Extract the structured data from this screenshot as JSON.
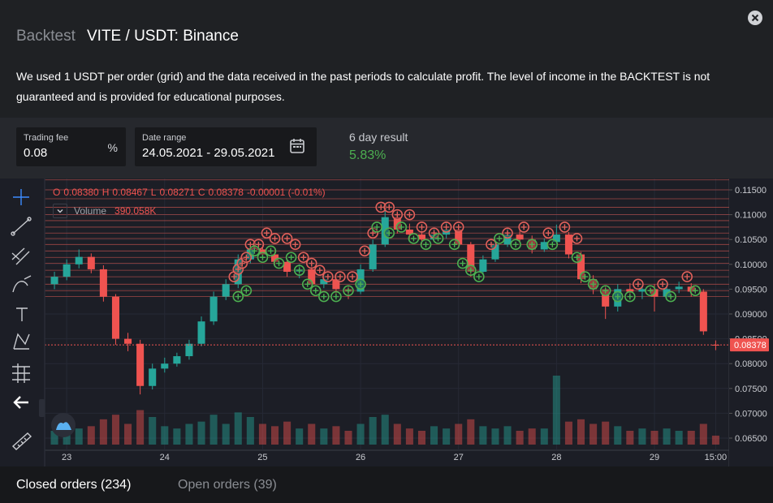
{
  "header": {
    "prefix": "Backtest",
    "title": "VITE / USDT: Binance"
  },
  "description": "We used 1 USDT per order (grid) and the data received in the past periods to calculate profit. The level of income in the BACKTEST is not guaranteed and is provided for educational purposes.",
  "fields": {
    "fee": {
      "label": "Trading fee",
      "value": "0.08",
      "unit": "%"
    },
    "range": {
      "label": "Date range",
      "value": "24.05.2021 - 29.05.2021"
    }
  },
  "result": {
    "label": "6 day result",
    "value": "5.83%"
  },
  "chart_data": {
    "type": "candlestick",
    "ohlc_legend": [
      {
        "label": "O",
        "value": "0.08380"
      },
      {
        "label": "H",
        "value": "0.08467"
      },
      {
        "label": "L",
        "value": "0.08271"
      },
      {
        "label": "C",
        "value": "0.08378"
      }
    ],
    "change": "-0.00001 (-0.01%)",
    "volume_name": "Volume",
    "volume_label": "390.058K",
    "up_color": "#26a69a",
    "down_color": "#ef5350",
    "x": [
      -3,
      0,
      3,
      6,
      9,
      12,
      15,
      18,
      21,
      24,
      27,
      30,
      33,
      36,
      39,
      42,
      45,
      48,
      51,
      54,
      57,
      60,
      63,
      66,
      69,
      72,
      75,
      78,
      81,
      84,
      87,
      90,
      93,
      96,
      99,
      102,
      105,
      108,
      111,
      114,
      117,
      120,
      123,
      126,
      129,
      132,
      135,
      138,
      141,
      144,
      147,
      150,
      153,
      156,
      159
    ],
    "open": [
      0.096,
      0.0975,
      0.1,
      0.1015,
      0.099,
      0.0935,
      0.085,
      0.084,
      0.0755,
      0.079,
      0.08,
      0.0815,
      0.084,
      0.0885,
      0.0935,
      0.096,
      0.101,
      0.103,
      0.102,
      0.1005,
      0.0985,
      0.099,
      0.096,
      0.097,
      0.095,
      0.0945,
      0.099,
      0.104,
      0.1095,
      0.107,
      0.106,
      0.105,
      0.106,
      0.107,
      0.104,
      0.0985,
      0.101,
      0.104,
      0.106,
      0.105,
      0.103,
      0.1045,
      0.106,
      0.102,
      0.097,
      0.095,
      0.0915,
      0.095,
      0.0945,
      0.095,
      0.0935,
      0.095,
      0.0955,
      0.0945,
      0.0838
    ],
    "high": [
      0.0985,
      0.101,
      0.103,
      0.1022,
      0.0998,
      0.094,
      0.0862,
      0.0848,
      0.08,
      0.0812,
      0.0822,
      0.0848,
      0.0895,
      0.0945,
      0.097,
      0.102,
      0.1045,
      0.104,
      0.103,
      0.1012,
      0.1,
      0.0998,
      0.0982,
      0.0978,
      0.0958,
      0.1,
      0.105,
      0.1115,
      0.1108,
      0.1082,
      0.1068,
      0.1072,
      0.1085,
      0.1078,
      0.1045,
      0.1018,
      0.1048,
      0.1072,
      0.1068,
      0.1058,
      0.1052,
      0.108,
      0.1065,
      0.1025,
      0.0978,
      0.0958,
      0.096,
      0.0962,
      0.0958,
      0.096,
      0.0962,
      0.0965,
      0.0962,
      0.095,
      0.08467
    ],
    "low": [
      0.095,
      0.0968,
      0.0992,
      0.0982,
      0.0925,
      0.0838,
      0.0825,
      0.0738,
      0.0748,
      0.0782,
      0.0794,
      0.0808,
      0.0835,
      0.0878,
      0.0928,
      0.0952,
      0.1002,
      0.101,
      0.0995,
      0.0975,
      0.0972,
      0.095,
      0.0952,
      0.094,
      0.093,
      0.094,
      0.0985,
      0.1035,
      0.1062,
      0.105,
      0.104,
      0.1045,
      0.1052,
      0.1032,
      0.0975,
      0.0978,
      0.1005,
      0.1035,
      0.1042,
      0.1022,
      0.1025,
      0.104,
      0.1012,
      0.0962,
      0.094,
      0.089,
      0.0905,
      0.0935,
      0.093,
      0.0905,
      0.0928,
      0.0942,
      0.0935,
      0.0858,
      0.08271
    ],
    "close": [
      0.0975,
      0.1,
      0.1015,
      0.099,
      0.0935,
      0.085,
      0.084,
      0.0755,
      0.079,
      0.08,
      0.0815,
      0.084,
      0.0885,
      0.0935,
      0.096,
      0.101,
      0.103,
      0.102,
      0.1005,
      0.0985,
      0.099,
      0.096,
      0.097,
      0.095,
      0.0945,
      0.099,
      0.104,
      0.1095,
      0.107,
      0.106,
      0.105,
      0.106,
      0.107,
      0.104,
      0.0985,
      0.101,
      0.104,
      0.106,
      0.105,
      0.103,
      0.1045,
      0.106,
      0.102,
      0.097,
      0.095,
      0.0915,
      0.095,
      0.0945,
      0.095,
      0.0935,
      0.095,
      0.0955,
      0.0945,
      0.0865,
      0.08378
    ],
    "volume": [
      600000,
      900000,
      700000,
      800000,
      1100000,
      1300000,
      900000,
      1500000,
      1200000,
      800000,
      700000,
      900000,
      1000000,
      1300000,
      900000,
      1400000,
      1200000,
      900000,
      800000,
      1000000,
      700000,
      900000,
      700000,
      800000,
      600000,
      900000,
      1200000,
      1300000,
      900000,
      700000,
      600000,
      800000,
      700000,
      900000,
      1100000,
      800000,
      700000,
      800000,
      600000,
      700000,
      700000,
      3000000,
      1000000,
      1100000,
      900000,
      1000000,
      800000,
      600000,
      700000,
      600000,
      700000,
      600000,
      600000,
      900000,
      390058
    ],
    "grid_levels": {
      "color": "#c0504d",
      "values": [
        0.117,
        0.115,
        0.1132,
        0.1115,
        0.11,
        0.1088,
        0.1075,
        0.1063,
        0.1052,
        0.104,
        0.1027,
        0.1014,
        0.1002,
        0.0988,
        0.0975,
        0.096,
        0.0947,
        0.0935
      ]
    },
    "sells": {
      "color": "#e0605a",
      "x": [
        41,
        42,
        43,
        44,
        45,
        47,
        49,
        51,
        54,
        56,
        58,
        60,
        62,
        64,
        67,
        70,
        73,
        75,
        77,
        79,
        81,
        84,
        87,
        90,
        93,
        96,
        104,
        108,
        112,
        118,
        122,
        125,
        140,
        146,
        152
      ],
      "y": [
        0.0975,
        0.099,
        0.1002,
        0.1014,
        0.104,
        0.104,
        0.1063,
        0.1052,
        0.1052,
        0.104,
        0.1014,
        0.1002,
        0.0988,
        0.0975,
        0.0975,
        0.0975,
        0.1027,
        0.1063,
        0.1115,
        0.1115,
        0.11,
        0.11,
        0.1075,
        0.1063,
        0.1075,
        0.1075,
        0.104,
        0.1063,
        0.1075,
        0.1063,
        0.1075,
        0.1052,
        0.096,
        0.096,
        0.0975
      ]
    },
    "buys": {
      "color": "#4caf50",
      "x": [
        42,
        44,
        46,
        48,
        50,
        52,
        55,
        57,
        59,
        61,
        63,
        66,
        69,
        72,
        76,
        79,
        82,
        85,
        88,
        91,
        95,
        97,
        99,
        101,
        106,
        110,
        114,
        119,
        125,
        127,
        129,
        132,
        135,
        138,
        143,
        148,
        154
      ],
      "y": [
        0.0935,
        0.0947,
        0.1027,
        0.1014,
        0.1027,
        0.1002,
        0.1014,
        0.0988,
        0.096,
        0.0947,
        0.0935,
        0.0935,
        0.0947,
        0.096,
        0.1075,
        0.1063,
        0.1075,
        0.1052,
        0.104,
        0.1052,
        0.104,
        0.1002,
        0.0988,
        0.0975,
        0.1052,
        0.104,
        0.104,
        0.104,
        0.1014,
        0.0975,
        0.096,
        0.0947,
        0.0935,
        0.0935,
        0.0947,
        0.0935,
        0.0947
      ]
    },
    "last_price": {
      "value": 0.08378,
      "label": "0.08378"
    },
    "xlim": [
      -5.4,
      162.3
    ],
    "xticks": [
      {
        "value": 0,
        "label": "23"
      },
      {
        "value": 24,
        "label": "24"
      },
      {
        "value": 48,
        "label": "25"
      },
      {
        "value": 72,
        "label": "26"
      },
      {
        "value": 96,
        "label": "27"
      },
      {
        "value": 120,
        "label": "28"
      },
      {
        "value": 144,
        "label": "29"
      },
      {
        "value": 159,
        "label": "15:00"
      }
    ],
    "ylim": [
      0.06255,
      0.11729
    ],
    "yticks": [
      {
        "value": 0.115,
        "label": "0.11500"
      },
      {
        "value": 0.11,
        "label": "0.11000"
      },
      {
        "value": 0.105,
        "label": "0.10500"
      },
      {
        "value": 0.1,
        "label": "0.10000"
      },
      {
        "value": 0.095,
        "label": "0.09500"
      },
      {
        "value": 0.09,
        "label": "0.09000"
      },
      {
        "value": 0.085,
        "label": "0.08500"
      },
      {
        "value": 0.08,
        "label": "0.08000"
      },
      {
        "value": 0.075,
        "label": "0.07500"
      },
      {
        "value": 0.07,
        "label": "0.07000"
      },
      {
        "value": 0.065,
        "label": "0.06500"
      }
    ],
    "grid": true
  },
  "tabs": [
    "Closed orders (234)",
    "Open orders (39)"
  ]
}
